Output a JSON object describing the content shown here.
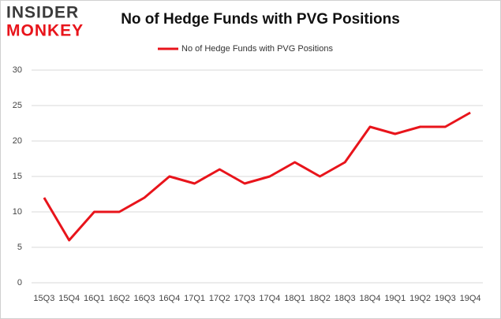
{
  "logo": {
    "line1": "INSIDER",
    "line2": "MONKEY"
  },
  "chart_data": {
    "type": "line",
    "title": "No of Hedge Funds with PVG Positions",
    "categories": [
      "15Q3",
      "15Q4",
      "16Q1",
      "16Q2",
      "16Q3",
      "16Q4",
      "17Q1",
      "17Q2",
      "17Q3",
      "17Q4",
      "18Q1",
      "18Q2",
      "18Q3",
      "18Q4",
      "19Q1",
      "19Q2",
      "19Q3",
      "19Q4"
    ],
    "series": [
      {
        "name": "No of Hedge Funds with PVG Positions",
        "color": "#e8141b",
        "values": [
          12,
          6,
          10,
          10,
          12,
          15,
          14,
          16,
          14,
          15,
          17,
          15,
          17,
          22,
          21,
          22,
          22,
          24
        ]
      }
    ],
    "ylim": [
      0,
      30
    ],
    "yticks": [
      0,
      5,
      10,
      15,
      20,
      25,
      30
    ],
    "grid": true,
    "legend": "top"
  }
}
